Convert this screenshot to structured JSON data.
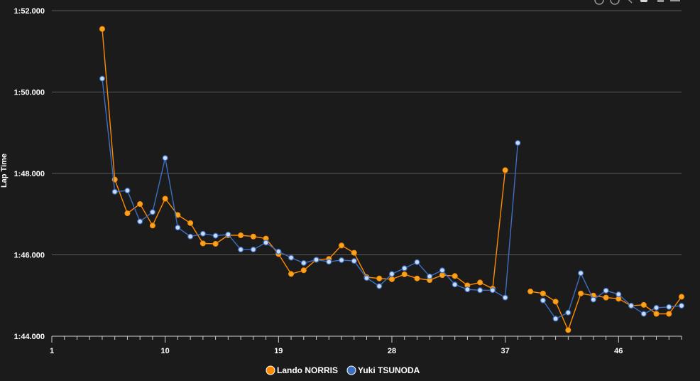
{
  "chart_data": {
    "type": "line",
    "title": "",
    "xlabel": "",
    "ylabel": "Lap Time",
    "x_ticks": [
      "1",
      "10",
      "19",
      "28",
      "37",
      "46"
    ],
    "x_range": [
      1,
      51
    ],
    "y_ticks": [
      "1:44.000",
      "1:46.000",
      "1:48.000",
      "1:50.000",
      "1:52.000"
    ],
    "ylim": [
      104.0,
      112.0
    ],
    "grid": "horizontal",
    "legend_position": "bottom-center",
    "series": [
      {
        "name": "Lando NORRIS",
        "color": "#ff8a00",
        "marker_fill": "#f5a623",
        "points": [
          [
            5,
            111.55
          ],
          [
            6,
            107.85
          ],
          [
            7,
            107.02
          ],
          [
            8,
            107.25
          ],
          [
            9,
            106.72
          ],
          [
            10,
            107.38
          ],
          [
            11,
            106.98
          ],
          [
            12,
            106.78
          ],
          [
            13,
            106.28
          ],
          [
            14,
            106.27
          ],
          [
            15,
            106.48
          ],
          [
            16,
            106.48
          ],
          [
            17,
            106.45
          ],
          [
            18,
            106.4
          ],
          [
            19,
            106.02
          ],
          [
            20,
            105.53
          ],
          [
            21,
            105.62
          ],
          [
            22,
            105.88
          ],
          [
            23,
            105.9
          ],
          [
            24,
            106.23
          ],
          [
            25,
            106.05
          ],
          [
            26,
            105.45
          ],
          [
            27,
            105.42
          ],
          [
            28,
            105.4
          ],
          [
            29,
            105.52
          ],
          [
            30,
            105.42
          ],
          [
            31,
            105.38
          ],
          [
            32,
            105.5
          ],
          [
            33,
            105.48
          ],
          [
            34,
            105.25
          ],
          [
            35,
            105.32
          ],
          [
            36,
            105.17
          ],
          [
            37,
            108.08
          ]
        ],
        "points_after_pit": [
          [
            39,
            105.1
          ],
          [
            40,
            105.05
          ],
          [
            41,
            104.85
          ],
          [
            42,
            104.15
          ],
          [
            43,
            105.05
          ],
          [
            44,
            105.0
          ],
          [
            45,
            104.95
          ],
          [
            46,
            104.92
          ],
          [
            47,
            104.75
          ],
          [
            48,
            104.77
          ],
          [
            49,
            104.55
          ],
          [
            50,
            104.55
          ],
          [
            51,
            104.97
          ]
        ]
      },
      {
        "name": "Yuki TSUNODA",
        "color": "#3d6fc2",
        "marker_fill": "#c9dcf7",
        "points": [
          [
            5,
            110.33
          ],
          [
            6,
            107.55
          ],
          [
            7,
            107.58
          ],
          [
            8,
            106.82
          ],
          [
            9,
            107.05
          ],
          [
            10,
            108.38
          ],
          [
            11,
            106.67
          ],
          [
            12,
            106.45
          ],
          [
            13,
            106.52
          ],
          [
            14,
            106.47
          ],
          [
            15,
            106.5
          ],
          [
            16,
            106.13
          ],
          [
            17,
            106.13
          ],
          [
            18,
            106.3
          ],
          [
            19,
            106.08
          ],
          [
            20,
            105.93
          ],
          [
            21,
            105.8
          ],
          [
            22,
            105.88
          ],
          [
            23,
            105.83
          ],
          [
            24,
            105.87
          ],
          [
            25,
            105.85
          ],
          [
            26,
            105.43
          ],
          [
            27,
            105.23
          ],
          [
            28,
            105.53
          ],
          [
            29,
            105.67
          ],
          [
            30,
            105.82
          ],
          [
            31,
            105.47
          ],
          [
            32,
            105.62
          ],
          [
            33,
            105.27
          ],
          [
            34,
            105.15
          ],
          [
            35,
            105.13
          ],
          [
            36,
            105.13
          ],
          [
            37,
            104.95
          ],
          [
            38,
            108.75
          ]
        ],
        "points_after_pit": [
          [
            40,
            104.88
          ],
          [
            41,
            104.43
          ],
          [
            42,
            104.58
          ],
          [
            43,
            105.55
          ],
          [
            44,
            104.9
          ],
          [
            45,
            105.12
          ],
          [
            46,
            105.03
          ],
          [
            47,
            104.75
          ],
          [
            48,
            104.55
          ],
          [
            49,
            104.7
          ],
          [
            50,
            104.72
          ],
          [
            51,
            104.75
          ]
        ]
      }
    ]
  },
  "toolbar": {
    "icons": [
      "zoom-in-icon",
      "zoom-out-icon",
      "pan-icon",
      "reset-icon",
      "bar-icon",
      "menu-icon"
    ]
  }
}
